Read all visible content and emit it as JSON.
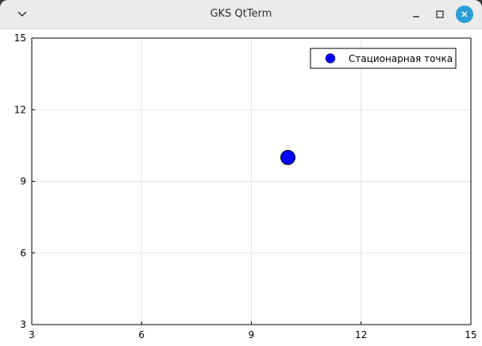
{
  "window": {
    "title": "GKS QtTerm"
  },
  "titlebar_icons": {
    "menu": "chevron-down-icon",
    "minimize": "minimize-icon",
    "maximize": "maximize-icon",
    "close": "close-icon",
    "close_color": "#2a9ed8"
  },
  "chart_data": {
    "type": "scatter",
    "title": "",
    "xlabel": "",
    "ylabel": "",
    "xlim": [
      3,
      15
    ],
    "ylim": [
      3,
      15
    ],
    "xticks": [
      3,
      6,
      9,
      12,
      15
    ],
    "yticks": [
      3,
      6,
      9,
      12,
      15
    ],
    "grid": true,
    "legend_position": "top-right",
    "series": [
      {
        "name": "Стационарная точка",
        "color": "#0000ff",
        "points": [
          {
            "x": 10,
            "y": 10
          }
        ]
      }
    ]
  }
}
